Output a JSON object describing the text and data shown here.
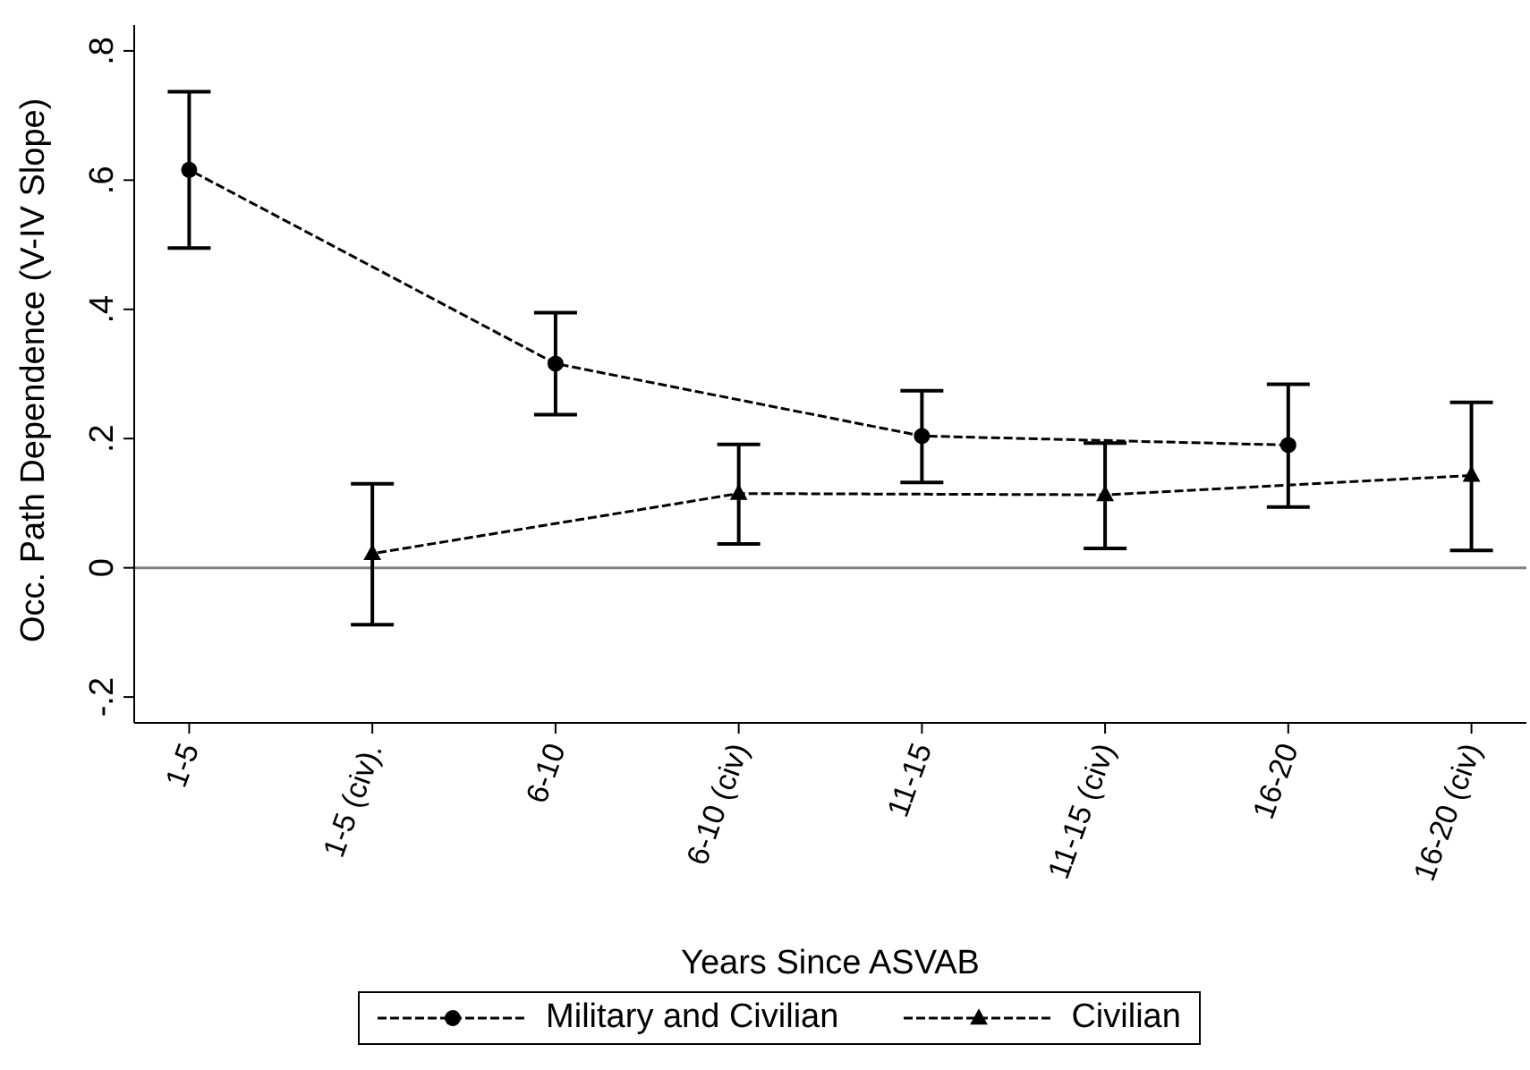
{
  "chart_data": {
    "type": "line",
    "xlabel": "Years Since ASVAB",
    "ylabel": "Occ. Path Dependence (V-IV Slope)",
    "categories": [
      "1-5",
      "1-5 (civ).",
      "6-10",
      "6-10 (civ)",
      "11-15",
      "11-15 (civ)",
      "16-20",
      "16-20 (civ)"
    ],
    "ylim": [
      -0.24,
      0.84
    ],
    "yticks": [
      {
        "value": -0.2,
        "label": "-.2"
      },
      0,
      {
        "value": 0.2,
        "label": ".2"
      },
      {
        "value": 0.4,
        "label": ".4"
      },
      {
        "value": 0.6,
        "label": ".6"
      },
      {
        "value": 0.8,
        "label": ".8"
      }
    ],
    "series": [
      {
        "name": "Military and Civilian",
        "color": "#000000",
        "marker": "circle",
        "x": [
          "1-5",
          "6-10",
          "11-15",
          "16-20"
        ],
        "values": [
          0.616,
          0.316,
          0.204,
          0.19
        ],
        "errors": [
          [
            0.495,
            0.737
          ],
          [
            0.237,
            0.395
          ],
          [
            0.132,
            0.274
          ],
          [
            0.094,
            0.284
          ]
        ]
      },
      {
        "name": "Civilian",
        "color": "#000000",
        "marker": "triangle",
        "x": [
          "1-5 (civ).",
          "6-10 (civ)",
          "11-15 (civ)",
          "16-20 (civ)"
        ],
        "values": [
          0.022,
          0.115,
          0.113,
          0.143
        ],
        "errors": [
          [
            -0.088,
            0.13
          ],
          [
            0.037,
            0.191
          ],
          [
            0.03,
            0.193
          ],
          [
            0.027,
            0.256
          ]
        ]
      }
    ],
    "ref_lines": [
      {
        "axis": "y",
        "value": 0,
        "color": "#808080"
      }
    ],
    "line_style": "dashed",
    "legend": "bottom"
  }
}
